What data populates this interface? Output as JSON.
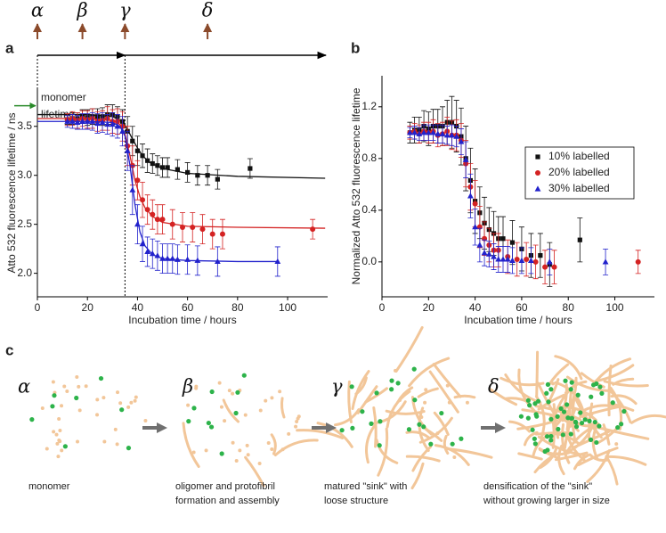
{
  "chart_data": [
    {
      "type": "scatter",
      "panel": "a",
      "x_label": "Incubation time / hours",
      "y_label": "Atto 532 fluorescence lifetime / ns",
      "xlim": [
        0,
        116
      ],
      "xticks": [
        0,
        20,
        40,
        60,
        80,
        100
      ],
      "ylim": [
        1.76,
        3.88
      ],
      "yticks": [
        {
          "value": 2,
          "label": "2.0"
        },
        2.5,
        {
          "value": 3,
          "label": "3.0"
        },
        3.5
      ],
      "phases": [
        {
          "label": "α",
          "x": 0
        },
        {
          "label": "β",
          "x": 18
        },
        {
          "label": "γ",
          "x": 35
        },
        {
          "label": "δ",
          "x": 68
        }
      ],
      "annotation": {
        "lines": [
          "monomer",
          "lifetime"
        ],
        "value": 3.71,
        "color": "#2a8a2a"
      },
      "series": [
        {
          "name": "10% labelled",
          "color": "#111111",
          "marker": "square",
          "x": [
            12,
            14,
            16,
            18,
            20,
            22,
            24,
            26,
            28,
            30,
            32,
            34,
            36,
            38,
            40,
            42,
            44,
            46,
            48,
            50,
            52,
            56,
            60,
            64,
            68,
            72,
            85
          ],
          "values": [
            3.57,
            3.58,
            3.58,
            3.6,
            3.59,
            3.6,
            3.6,
            3.6,
            3.62,
            3.62,
            3.6,
            3.55,
            3.45,
            3.35,
            3.25,
            3.2,
            3.15,
            3.12,
            3.1,
            3.08,
            3.08,
            3.06,
            3.03,
            3.0,
            3.0,
            2.96,
            3.07
          ],
          "errors": [
            0.05,
            0.06,
            0.06,
            0.07,
            0.08,
            0.08,
            0.08,
            0.09,
            0.1,
            0.1,
            0.1,
            0.12,
            0.15,
            0.15,
            0.15,
            0.12,
            0.12,
            0.1,
            0.1,
            0.1,
            0.1,
            0.1,
            0.1,
            0.1,
            0.1,
            0.1,
            0.1
          ],
          "fit": {
            "x": [
              0,
              20,
              30,
              34,
              36,
              38,
              40,
              42,
              45,
              50,
              60,
              80,
              115
            ],
            "values": [
              3.62,
              3.62,
              3.6,
              3.55,
              3.47,
              3.37,
              3.28,
              3.2,
              3.13,
              3.07,
              3.02,
              2.99,
              2.97
            ]
          }
        },
        {
          "name": "20% labelled",
          "color": "#d42222",
          "marker": "circle",
          "x": [
            12,
            14,
            16,
            18,
            20,
            22,
            24,
            26,
            28,
            30,
            32,
            34,
            36,
            38,
            40,
            42,
            44,
            46,
            48,
            50,
            54,
            58,
            62,
            66,
            70,
            74,
            110
          ],
          "values": [
            3.57,
            3.58,
            3.56,
            3.58,
            3.57,
            3.58,
            3.55,
            3.56,
            3.58,
            3.55,
            3.55,
            3.5,
            3.3,
            3.1,
            2.95,
            2.75,
            2.65,
            2.6,
            2.55,
            2.55,
            2.5,
            2.47,
            2.47,
            2.45,
            2.4,
            2.4,
            2.45
          ],
          "errors": [
            0.06,
            0.07,
            0.08,
            0.08,
            0.09,
            0.1,
            0.1,
            0.1,
            0.12,
            0.12,
            0.13,
            0.15,
            0.2,
            0.2,
            0.2,
            0.18,
            0.15,
            0.15,
            0.15,
            0.15,
            0.15,
            0.15,
            0.15,
            0.15,
            0.15,
            0.15,
            0.1
          ],
          "fit": {
            "x": [
              0,
              20,
              30,
              33,
              35,
              37,
              39,
              41,
              43,
              46,
              50,
              60,
              80,
              115
            ],
            "values": [
              3.58,
              3.58,
              3.56,
              3.52,
              3.42,
              3.2,
              2.95,
              2.78,
              2.67,
              2.58,
              2.52,
              2.48,
              2.47,
              2.46
            ]
          }
        },
        {
          "name": "30% labelled",
          "color": "#2222cc",
          "marker": "triangle",
          "x": [
            12,
            14,
            16,
            18,
            20,
            22,
            24,
            26,
            28,
            30,
            32,
            34,
            36,
            38,
            40,
            42,
            44,
            46,
            48,
            50,
            52,
            54,
            56,
            60,
            64,
            72,
            96
          ],
          "values": [
            3.55,
            3.55,
            3.54,
            3.55,
            3.55,
            3.55,
            3.53,
            3.54,
            3.52,
            3.52,
            3.5,
            3.45,
            3.25,
            2.85,
            2.5,
            2.3,
            2.22,
            2.2,
            2.18,
            2.15,
            2.15,
            2.15,
            2.14,
            2.14,
            2.13,
            2.12,
            2.12
          ],
          "errors": [
            0.06,
            0.07,
            0.07,
            0.08,
            0.08,
            0.09,
            0.1,
            0.1,
            0.1,
            0.12,
            0.12,
            0.15,
            0.2,
            0.25,
            0.2,
            0.18,
            0.15,
            0.15,
            0.15,
            0.15,
            0.15,
            0.15,
            0.15,
            0.15,
            0.15,
            0.15,
            0.15
          ],
          "fit": {
            "x": [
              0,
              20,
              30,
              33,
              35,
              37,
              39,
              41,
              43,
              46,
              50,
              60,
              80,
              96
            ],
            "values": [
              3.55,
              3.55,
              3.54,
              3.5,
              3.4,
              3.1,
              2.7,
              2.42,
              2.28,
              2.19,
              2.15,
              2.13,
              2.12,
              2.12
            ]
          }
        }
      ]
    },
    {
      "type": "scatter",
      "panel": "b",
      "x_label": "Incubation time / hours",
      "y_label": "Normalized Atto 532 fluorescence lifetime",
      "xlim": [
        0,
        117
      ],
      "xticks": [
        0,
        20,
        40,
        60,
        80,
        100
      ],
      "ylim": [
        -0.27,
        1.44
      ],
      "yticks": [
        {
          "value": 0,
          "label": "0.0"
        },
        0.4,
        0.8,
        1.2
      ],
      "legend": "right",
      "series": [
        {
          "name": "10% labelled",
          "color": "#111111",
          "marker": "square",
          "x": [
            12,
            14,
            16,
            18,
            20,
            22,
            24,
            26,
            28,
            30,
            32,
            34,
            36,
            38,
            40,
            42,
            44,
            46,
            48,
            50,
            52,
            56,
            60,
            64,
            68,
            72,
            85
          ],
          "values": [
            1.0,
            1.02,
            1.02,
            1.05,
            1.03,
            1.05,
            1.05,
            1.05,
            1.08,
            1.08,
            1.05,
            0.97,
            0.8,
            0.63,
            0.47,
            0.38,
            0.3,
            0.25,
            0.22,
            0.18,
            0.18,
            0.15,
            0.1,
            0.05,
            0.05,
            -0.02,
            0.17
          ],
          "errors": [
            0.08,
            0.1,
            0.1,
            0.12,
            0.13,
            0.13,
            0.13,
            0.15,
            0.17,
            0.2,
            0.2,
            0.22,
            0.25,
            0.25,
            0.25,
            0.2,
            0.2,
            0.17,
            0.17,
            0.17,
            0.17,
            0.17,
            0.17,
            0.17,
            0.17,
            0.17,
            0.17
          ]
        },
        {
          "name": "20% labelled",
          "color": "#d42222",
          "marker": "circle",
          "x": [
            12,
            14,
            16,
            18,
            20,
            22,
            24,
            26,
            28,
            30,
            32,
            34,
            36,
            38,
            40,
            42,
            44,
            46,
            48,
            50,
            54,
            58,
            62,
            66,
            70,
            74,
            110
          ],
          "values": [
            1.0,
            1.01,
            0.99,
            1.01,
            1.0,
            1.01,
            0.98,
            0.99,
            1.01,
            0.98,
            0.98,
            0.94,
            0.76,
            0.58,
            0.45,
            0.27,
            0.18,
            0.13,
            0.09,
            0.09,
            0.04,
            0.02,
            0.02,
            0.0,
            -0.04,
            -0.04,
            0.0
          ],
          "errors": [
            0.05,
            0.06,
            0.07,
            0.07,
            0.08,
            0.09,
            0.09,
            0.09,
            0.11,
            0.11,
            0.12,
            0.13,
            0.18,
            0.18,
            0.18,
            0.16,
            0.13,
            0.13,
            0.13,
            0.13,
            0.13,
            0.13,
            0.13,
            0.13,
            0.13,
            0.13,
            0.09
          ]
        },
        {
          "name": "30% labelled",
          "color": "#2222cc",
          "marker": "triangle",
          "x": [
            12,
            14,
            16,
            18,
            20,
            22,
            24,
            26,
            28,
            30,
            32,
            34,
            36,
            38,
            40,
            42,
            44,
            46,
            48,
            50,
            52,
            54,
            56,
            60,
            64,
            72,
            96
          ],
          "values": [
            1.0,
            1.0,
            0.99,
            1.0,
            1.0,
            1.0,
            0.99,
            0.99,
            0.98,
            0.98,
            0.97,
            0.93,
            0.79,
            0.51,
            0.27,
            0.13,
            0.07,
            0.06,
            0.04,
            0.02,
            0.02,
            0.02,
            0.01,
            0.01,
            0.01,
            0.0,
            0.0
          ],
          "errors": [
            0.04,
            0.05,
            0.05,
            0.06,
            0.06,
            0.06,
            0.07,
            0.07,
            0.07,
            0.08,
            0.08,
            0.1,
            0.14,
            0.17,
            0.14,
            0.13,
            0.1,
            0.1,
            0.1,
            0.1,
            0.1,
            0.1,
            0.1,
            0.1,
            0.1,
            0.1,
            0.1
          ]
        }
      ]
    }
  ],
  "diagram": {
    "panel": "c",
    "stages": [
      {
        "label": "α",
        "caption": [
          "monomer"
        ]
      },
      {
        "label": "β",
        "caption": [
          "oligomer and protofibril",
          "formation and assembly"
        ]
      },
      {
        "label": "γ",
        "caption": [
          "matured \"sink\" with",
          "loose structure"
        ]
      },
      {
        "label": "δ",
        "caption": [
          "densification of the \"sink\"",
          "without growing larger in size"
        ]
      }
    ]
  }
}
